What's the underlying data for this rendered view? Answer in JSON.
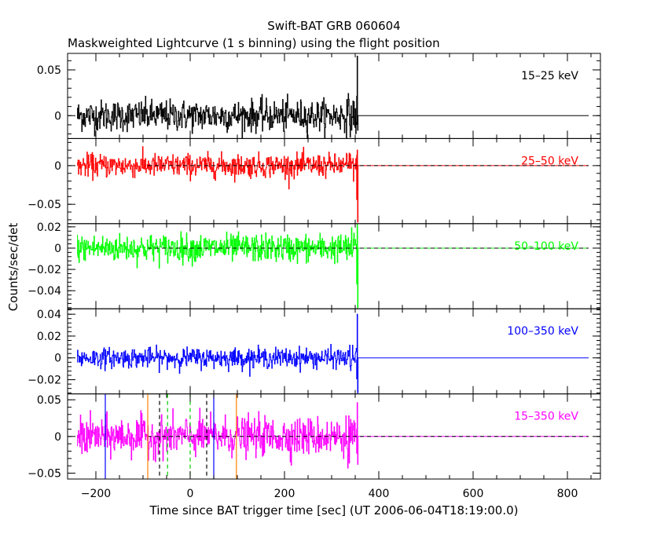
{
  "title": "Swift-BAT GRB 060604",
  "subtitle": "Maskweighted Lightcurve (1 s binning) using the flight position",
  "chart_data": {
    "type": "line",
    "xlabel": "Time since BAT trigger time [sec] (UT 2006-06-04T18:19:00.0)",
    "ylabel": "Counts/sec/det",
    "xlim": [
      -260,
      870
    ],
    "x_ticks": [
      "−200",
      "0",
      "200",
      "400",
      "600",
      "800"
    ],
    "x_tick_values": [
      -200,
      0,
      200,
      400,
      600,
      800
    ],
    "data_range": [
      -240,
      355
    ],
    "flat_extension_end": 845,
    "grid": false,
    "legend": "none",
    "panels": [
      {
        "band": "15–25 keV",
        "color": "#000000",
        "ylim": [
          -0.025,
          0.068
        ],
        "yticks": [
          0,
          0.05
        ],
        "ytick_labels": [
          "0",
          "0.05"
        ],
        "noise": 0.0085,
        "spike_up": 0.065,
        "spike_down": -0.016,
        "dashed_zero": false
      },
      {
        "band": "25–50 keV",
        "color": "#ff0000",
        "ylim": [
          -0.075,
          0.035
        ],
        "yticks": [
          0,
          -0.05
        ],
        "ytick_labels": [
          "0",
          "−0.05"
        ],
        "noise": 0.0075,
        "spike_up": 0.02,
        "spike_down": -0.073,
        "dashed_zero": true
      },
      {
        "band": "50–100 keV",
        "color": "#00ff00",
        "ylim": [
          -0.057,
          0.023
        ],
        "yticks": [
          0.02,
          0,
          -0.02,
          -0.04
        ],
        "ytick_labels": [
          "0.02",
          "0",
          "−0.02",
          "−0.04"
        ],
        "noise": 0.0065,
        "spike_up": 0.022,
        "spike_down": -0.056,
        "dashed_zero": true
      },
      {
        "band": "100–350 keV",
        "color": "#0000ff",
        "ylim": [
          -0.033,
          0.045
        ],
        "yticks": [
          0.04,
          0.02,
          0,
          -0.02
        ],
        "ytick_labels": [
          "0.04",
          "0.02",
          "0",
          "−0.02"
        ],
        "noise": 0.0045,
        "spike_up": 0.04,
        "spike_down": -0.032,
        "dashed_zero": false
      },
      {
        "band": "15–350 keV",
        "color": "#ff00ff",
        "ylim": [
          -0.058,
          0.058
        ],
        "yticks": [
          0.05,
          0,
          -0.05
        ],
        "ytick_labels": [
          "0.05",
          "0",
          "−0.05"
        ],
        "noise": 0.013,
        "spike_up": 0.046,
        "spike_down": -0.038,
        "dashed_zero": true
      }
    ],
    "markers": [
      {
        "x": -180,
        "color": "#0000ff",
        "style": "solid"
      },
      {
        "x": 50,
        "color": "#0000ff",
        "style": "solid"
      },
      {
        "x": -90,
        "color": "#ff8000",
        "style": "solid"
      },
      {
        "x": 98,
        "color": "#ff8000",
        "style": "solid"
      },
      {
        "x": -65,
        "color": "#000000",
        "style": "dashed"
      },
      {
        "x": 35,
        "color": "#000000",
        "style": "dashed"
      },
      {
        "x": -48,
        "color": "#00cc00",
        "style": "dashed"
      },
      {
        "x": 0,
        "color": "#00cc00",
        "style": "dashed"
      }
    ]
  }
}
